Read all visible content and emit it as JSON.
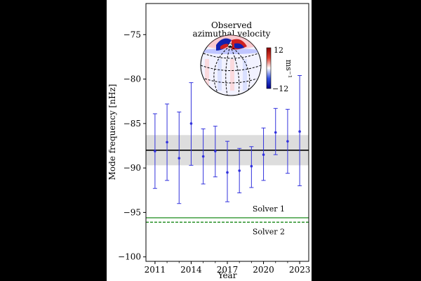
{
  "chart_data": {
    "type": "scatter",
    "xlabel": "Year",
    "ylabel": "Mode frequency [nHz]",
    "xlim": [
      2010.25,
      2023.75
    ],
    "ylim": [
      -100.5,
      -71.5
    ],
    "x_ticks": [
      2011,
      2014,
      2017,
      2020,
      2023
    ],
    "y_ticks": [
      -75,
      -80,
      -85,
      -90,
      -95,
      -100
    ],
    "series": [
      {
        "points": [
          {
            "x": 2011,
            "y": -88.1,
            "lo": -92.3,
            "hi": -83.9
          },
          {
            "x": 2012,
            "y": -87.1,
            "lo": -91.4,
            "hi": -82.8
          },
          {
            "x": 2013,
            "y": -88.9,
            "lo": -94.0,
            "hi": -83.7
          },
          {
            "x": 2014,
            "y": -85.0,
            "lo": -89.7,
            "hi": -80.4
          },
          {
            "x": 2015,
            "y": -88.7,
            "lo": -91.8,
            "hi": -85.6
          },
          {
            "x": 2016,
            "y": -88.1,
            "lo": -91.0,
            "hi": -85.3
          },
          {
            "x": 2017,
            "y": -90.5,
            "lo": -93.8,
            "hi": -87.0
          },
          {
            "x": 2018,
            "y": -90.3,
            "lo": -92.8,
            "hi": -87.8
          },
          {
            "x": 2019,
            "y": -89.8,
            "lo": -92.2,
            "hi": -87.6
          },
          {
            "x": 2020,
            "y": -88.5,
            "lo": -91.4,
            "hi": -85.5
          },
          {
            "x": 2021,
            "y": -86.0,
            "lo": -88.5,
            "hi": -83.3
          },
          {
            "x": 2022,
            "y": -87.0,
            "lo": -90.6,
            "hi": -83.4
          },
          {
            "x": 2023,
            "y": -85.9,
            "lo": -92.0,
            "hi": -79.6
          }
        ]
      }
    ],
    "mean_line": -88.0,
    "mean_band": [
      -89.7,
      -86.3
    ],
    "hlines": [
      {
        "label": "Solver 1",
        "y": -95.6,
        "style": "solid"
      },
      {
        "label": "Solver 2",
        "y": -96.1,
        "style": "dashed"
      }
    ],
    "colors": {
      "points": "#3333dd",
      "mean": "#000000",
      "band": "#dddddd",
      "solver": "#1a8a1a"
    }
  },
  "inset": {
    "title_line1": "Observed",
    "title_line2": "azimuthal velocity",
    "colorbar_max": "12",
    "colorbar_min": "−12",
    "colorbar_unit": "ms⁻¹"
  }
}
